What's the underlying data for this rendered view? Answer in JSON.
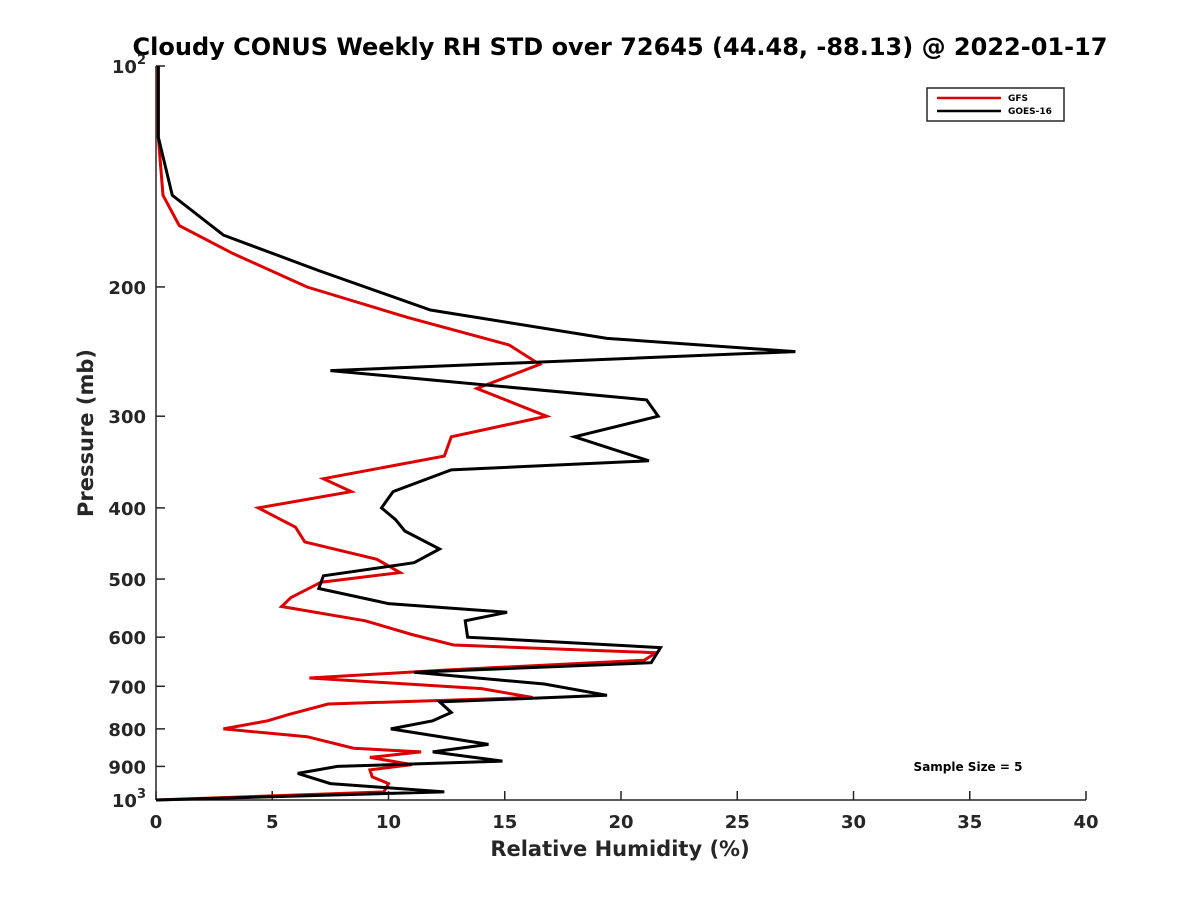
{
  "chart_data": {
    "type": "line",
    "title": "Cloudy CONUS Weekly RH STD over 72645 (44.48, -88.13) @ 2022-01-17",
    "xlabel": "Relative Humidity (%)",
    "ylabel": "Pressure (mb)",
    "xlim": [
      0,
      40
    ],
    "ylim": [
      100,
      1000
    ],
    "yscale": "log",
    "y_reversed": true,
    "x_ticks": [
      "0",
      "5",
      "10",
      "15",
      "20",
      "25",
      "30",
      "35",
      "40"
    ],
    "y_ticks": [
      {
        "value": 100,
        "base": "10",
        "exp": "2"
      },
      {
        "value": 200,
        "label": "200"
      },
      {
        "value": 300,
        "label": "300"
      },
      {
        "value": 400,
        "label": "400"
      },
      {
        "value": 500,
        "label": "500"
      },
      {
        "value": 600,
        "label": "600"
      },
      {
        "value": 700,
        "label": "700"
      },
      {
        "value": 800,
        "label": "800"
      },
      {
        "value": 900,
        "label": "900"
      },
      {
        "value": 1000,
        "base": "10",
        "exp": "3"
      }
    ],
    "grid": false,
    "legend_position": "top-right",
    "annotation": "Sample Size = 5",
    "series": [
      {
        "name": "GFS",
        "color": "#dd0000",
        "points": [
          [
            0.1,
            100
          ],
          [
            0.1,
            125
          ],
          [
            0.3,
            150
          ],
          [
            1.0,
            165
          ],
          [
            3.3,
            180
          ],
          [
            6.5,
            200
          ],
          [
            10.8,
            220
          ],
          [
            15.2,
            240
          ],
          [
            16.5,
            255
          ],
          [
            13.8,
            275
          ],
          [
            16.8,
            300
          ],
          [
            12.7,
            320
          ],
          [
            12.4,
            340
          ],
          [
            7.2,
            365
          ],
          [
            8.4,
            380
          ],
          [
            4.4,
            400
          ],
          [
            6.0,
            425
          ],
          [
            6.4,
            445
          ],
          [
            9.5,
            470
          ],
          [
            10.5,
            490
          ],
          [
            7.1,
            505
          ],
          [
            5.8,
            530
          ],
          [
            5.4,
            545
          ],
          [
            9.0,
            570
          ],
          [
            11.0,
            595
          ],
          [
            12.8,
            615
          ],
          [
            21.5,
            630
          ],
          [
            21.0,
            645
          ],
          [
            12.5,
            665
          ],
          [
            6.6,
            682
          ],
          [
            14.0,
            705
          ],
          [
            16.2,
            725
          ],
          [
            7.4,
            740
          ],
          [
            5.7,
            765
          ],
          [
            4.8,
            780
          ],
          [
            2.9,
            800
          ],
          [
            6.5,
            820
          ],
          [
            8.5,
            850
          ],
          [
            11.4,
            860
          ],
          [
            9.2,
            875
          ],
          [
            11.0,
            895
          ],
          [
            9.2,
            910
          ],
          [
            9.3,
            930
          ],
          [
            10.0,
            950
          ],
          [
            9.8,
            975
          ],
          [
            0.0,
            1000
          ]
        ]
      },
      {
        "name": "GOES-16",
        "color": "#000000",
        "points": [
          [
            0.1,
            100
          ],
          [
            0.1,
            125
          ],
          [
            0.7,
            150
          ],
          [
            2.9,
            170
          ],
          [
            7.0,
            190
          ],
          [
            11.8,
            215
          ],
          [
            19.4,
            235
          ],
          [
            27.5,
            245
          ],
          [
            7.5,
            260
          ],
          [
            21.1,
            285
          ],
          [
            21.6,
            300
          ],
          [
            18.0,
            320
          ],
          [
            21.2,
            345
          ],
          [
            12.7,
            355
          ],
          [
            10.2,
            380
          ],
          [
            9.7,
            400
          ],
          [
            10.3,
            415
          ],
          [
            10.7,
            430
          ],
          [
            12.2,
            455
          ],
          [
            11.1,
            475
          ],
          [
            7.2,
            495
          ],
          [
            7.0,
            515
          ],
          [
            10.0,
            540
          ],
          [
            15.1,
            555
          ],
          [
            13.3,
            570
          ],
          [
            13.4,
            600
          ],
          [
            21.7,
            620
          ],
          [
            21.3,
            650
          ],
          [
            11.1,
            670
          ],
          [
            16.7,
            695
          ],
          [
            19.4,
            720
          ],
          [
            12.2,
            735
          ],
          [
            12.7,
            760
          ],
          [
            11.9,
            780
          ],
          [
            10.1,
            800
          ],
          [
            14.3,
            840
          ],
          [
            11.9,
            860
          ],
          [
            14.9,
            885
          ],
          [
            7.8,
            900
          ],
          [
            6.1,
            920
          ],
          [
            7.5,
            950
          ],
          [
            12.4,
            975
          ],
          [
            0.0,
            1000
          ]
        ]
      }
    ]
  }
}
